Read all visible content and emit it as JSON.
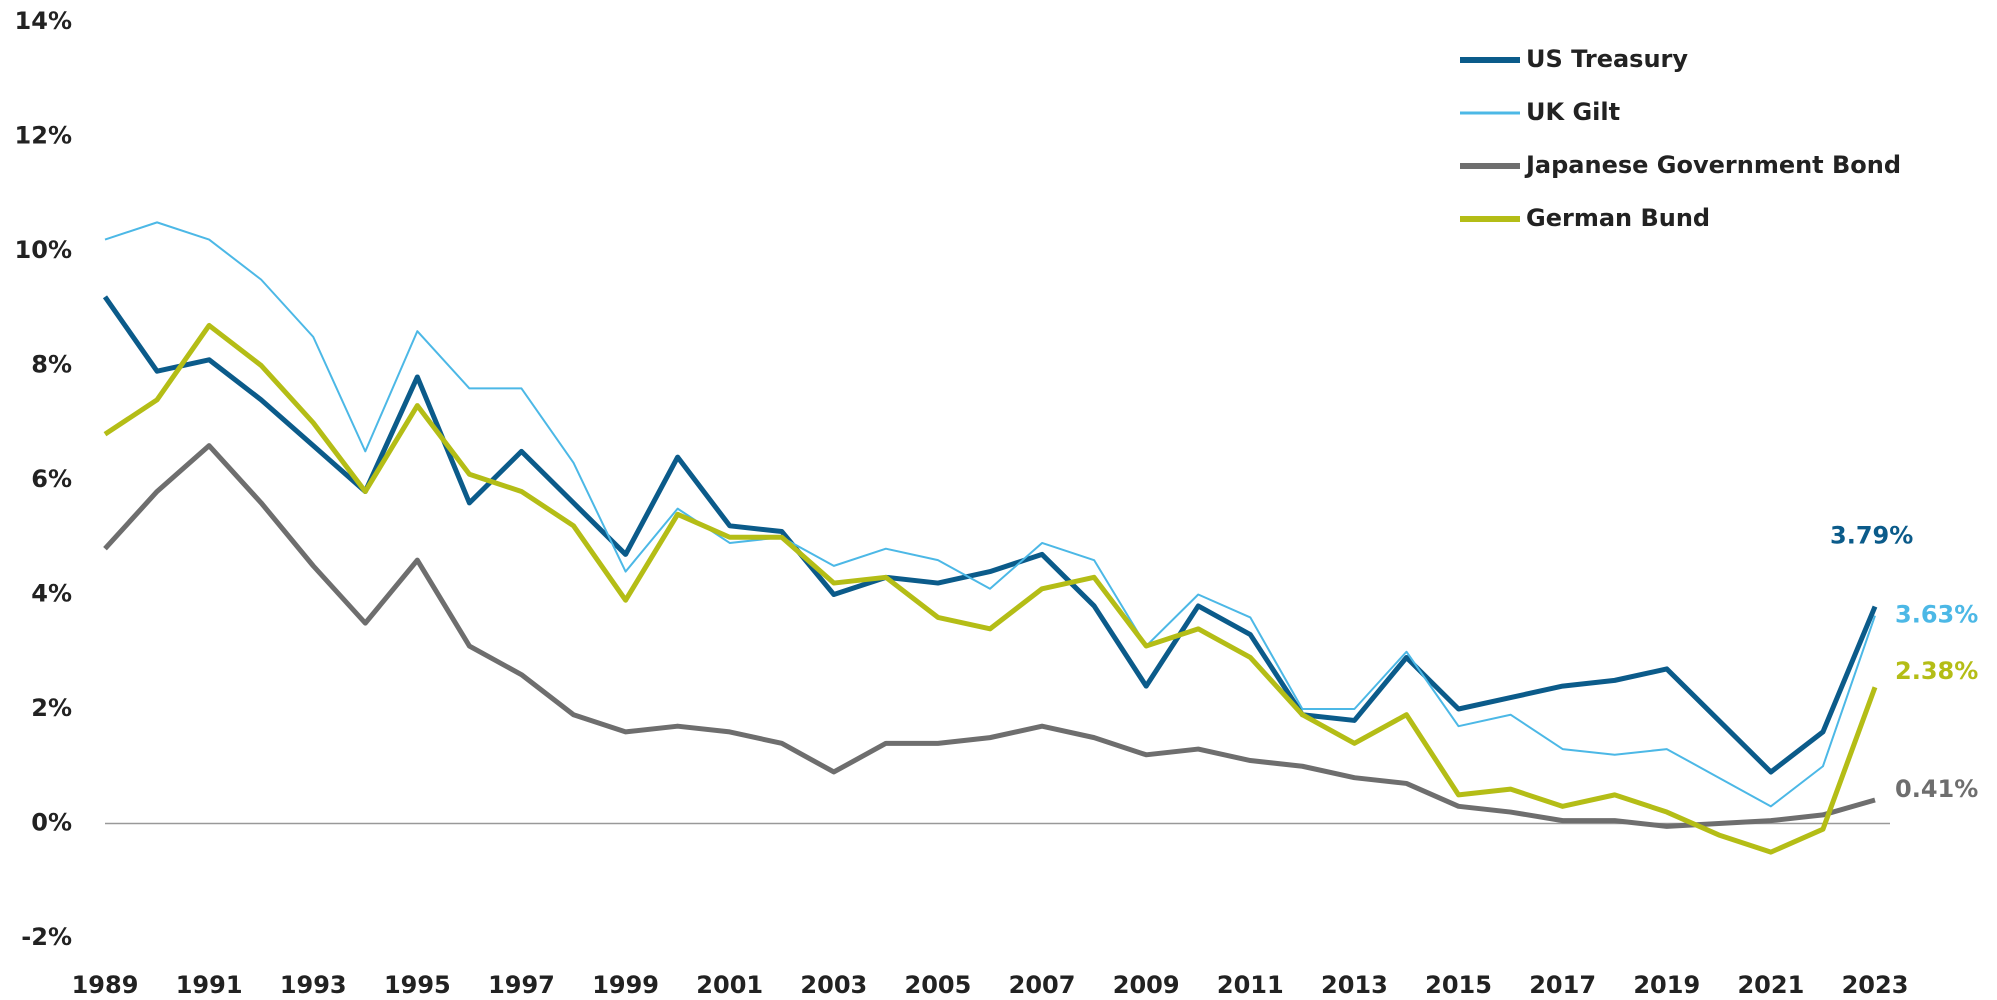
{
  "chart_data": {
    "type": "line",
    "x": [
      1989,
      1990,
      1991,
      1992,
      1993,
      1994,
      1995,
      1996,
      1997,
      1998,
      1999,
      2000,
      2001,
      2002,
      2003,
      2004,
      2005,
      2006,
      2007,
      2008,
      2009,
      2010,
      2011,
      2012,
      2013,
      2014,
      2015,
      2016,
      2017,
      2018,
      2019,
      2020,
      2021,
      2022,
      2023
    ],
    "series": [
      {
        "name": "US Treasury",
        "color": "#0b5b8a",
        "end_label": "3.79%",
        "values": [
          9.2,
          7.9,
          8.1,
          7.4,
          6.6,
          5.8,
          7.8,
          5.6,
          6.5,
          5.6,
          4.7,
          6.4,
          5.2,
          5.1,
          4.0,
          4.3,
          4.2,
          4.4,
          4.7,
          3.8,
          2.4,
          3.8,
          3.3,
          1.9,
          1.8,
          2.9,
          2.0,
          2.2,
          2.4,
          2.5,
          2.7,
          1.8,
          0.9,
          1.6,
          3.79
        ]
      },
      {
        "name": "UK Gilt",
        "color": "#4cb8e6",
        "end_label": "3.63%",
        "values": [
          10.2,
          10.5,
          10.2,
          9.5,
          8.5,
          6.5,
          8.6,
          7.6,
          7.6,
          6.3,
          4.4,
          5.5,
          4.9,
          5.0,
          4.5,
          4.8,
          4.6,
          4.1,
          4.9,
          4.6,
          3.1,
          4.0,
          3.6,
          2.0,
          2.0,
          3.0,
          1.7,
          1.9,
          1.3,
          1.2,
          1.3,
          0.8,
          0.3,
          1.0,
          3.63
        ]
      },
      {
        "name": "Japanese Government Bond",
        "color": "#6e6e6e",
        "end_label": "0.41%",
        "values": [
          4.8,
          5.8,
          6.6,
          5.6,
          4.5,
          3.5,
          4.6,
          3.1,
          2.6,
          1.9,
          1.6,
          1.7,
          1.6,
          1.4,
          0.9,
          1.4,
          1.4,
          1.5,
          1.7,
          1.5,
          1.2,
          1.3,
          1.1,
          1.0,
          0.8,
          0.7,
          0.3,
          0.2,
          0.05,
          0.05,
          -0.05,
          0.0,
          0.05,
          0.15,
          0.41
        ]
      },
      {
        "name": "German Bund",
        "color": "#b4bd16",
        "end_label": "2.38%",
        "values": [
          6.8,
          7.4,
          8.7,
          8.0,
          7.0,
          5.8,
          7.3,
          6.1,
          5.8,
          5.2,
          3.9,
          5.4,
          5.0,
          5.0,
          4.2,
          4.3,
          3.6,
          3.4,
          4.1,
          4.3,
          3.1,
          3.4,
          2.9,
          1.9,
          1.4,
          1.9,
          0.5,
          0.6,
          0.3,
          0.5,
          0.2,
          -0.2,
          -0.5,
          -0.1,
          2.38
        ]
      }
    ],
    "xlim": [
      1989,
      2023
    ],
    "xticks": [
      1989,
      1991,
      1993,
      1995,
      1997,
      1999,
      2001,
      2003,
      2005,
      2007,
      2009,
      2011,
      2013,
      2015,
      2017,
      2019,
      2021,
      2023
    ],
    "ylim": [
      -2,
      14
    ],
    "yticks": [
      {
        "value": -2,
        "label": "-2%"
      },
      {
        "value": 0,
        "label": "0%"
      },
      {
        "value": 2,
        "label": "2%"
      },
      {
        "value": 4,
        "label": "4%"
      },
      {
        "value": 6,
        "label": "6%"
      },
      {
        "value": 8,
        "label": "8%"
      },
      {
        "value": 10,
        "label": "10%"
      },
      {
        "value": 12,
        "label": "12%"
      },
      {
        "value": 14,
        "label": "14%"
      }
    ],
    "grid": false,
    "legend": "top-right"
  }
}
